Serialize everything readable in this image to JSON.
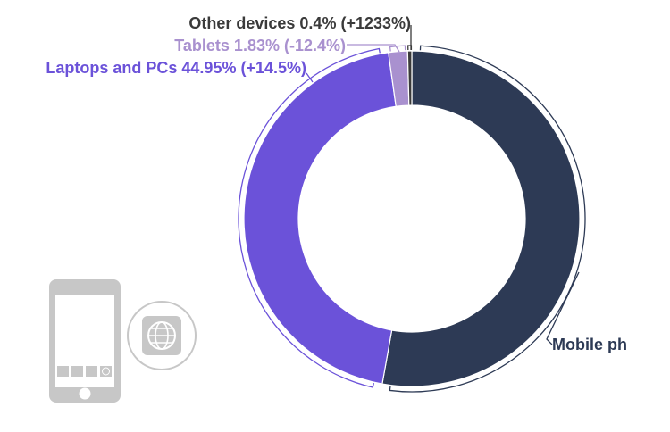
{
  "chart_data": {
    "type": "pie",
    "variant": "donut",
    "title": "",
    "categories": [
      "Mobile phones",
      "Laptops and PCs",
      "Tablets",
      "Other devices"
    ],
    "values": [
      52.82,
      44.95,
      1.83,
      0.4
    ],
    "changes": [
      "",
      "+14.5%",
      "-12.4%",
      "+1233%"
    ],
    "labels": [
      "Mobile ph",
      "Laptops and PCs 44.95% (+14.5%)",
      "Tablets 1.83% (-12.4%)",
      "Other devices 0.4% (+1233%)"
    ],
    "colors": [
      "#2d3a55",
      "#6b52d9",
      "#a991cf",
      "#3a3a3a"
    ],
    "label_colors": [
      "#2d3a55",
      "#6b52d9",
      "#a991cf",
      "#3a3a3a"
    ],
    "legend": "none"
  },
  "decoration": {
    "phone_icon": "smartphone-icon",
    "globe_icon": "globe-icon",
    "icon_color": "#c7c7c7"
  }
}
